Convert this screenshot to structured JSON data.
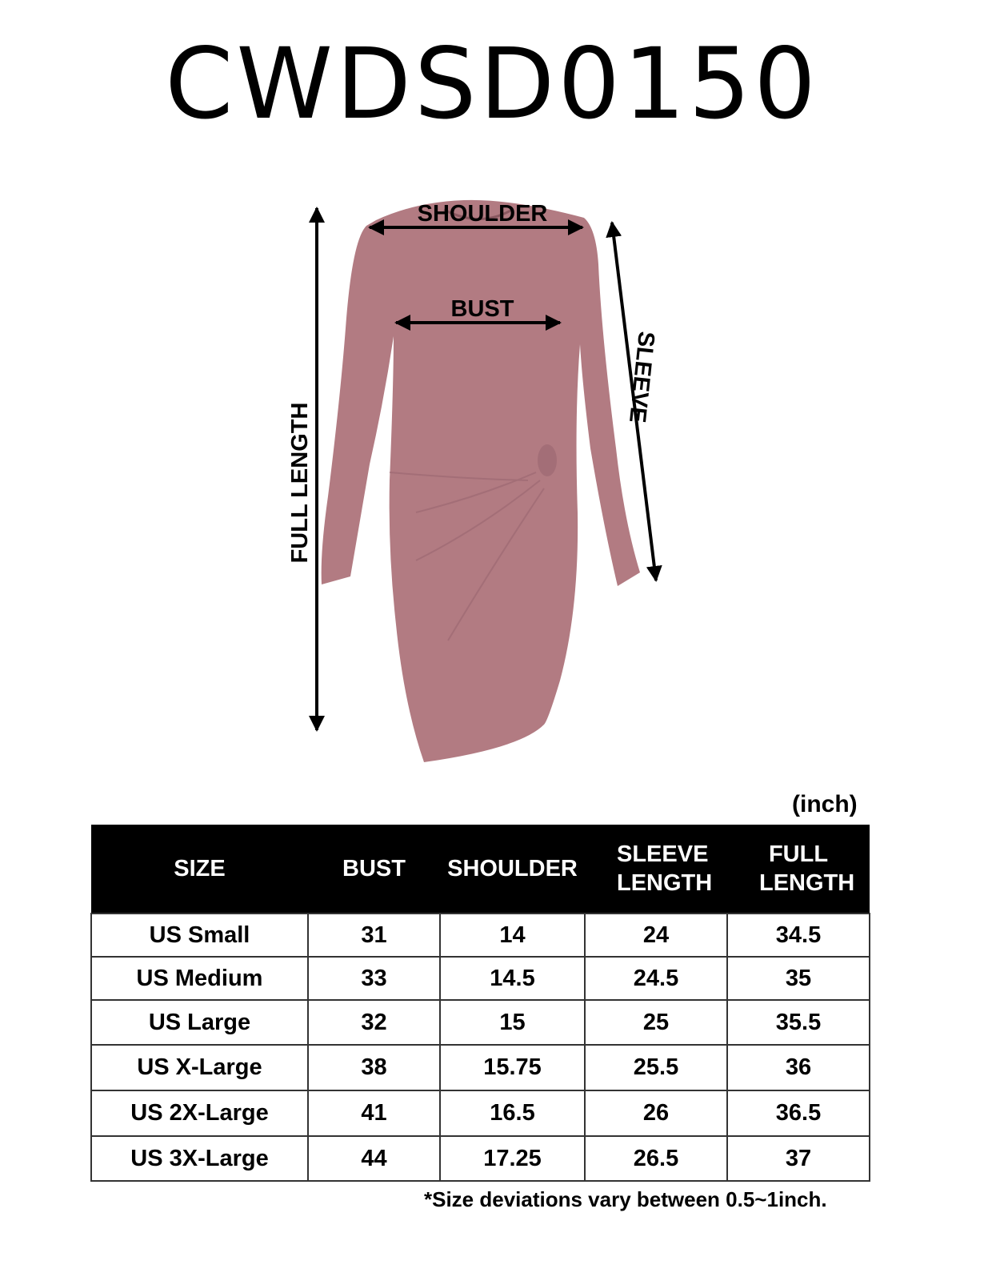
{
  "title": "CWDSD0150",
  "figure": {
    "labels": {
      "shoulder": "SHOULDER",
      "bust": "BUST",
      "sleeve": "SLEEVE",
      "full_length": "FULL LENGTH"
    },
    "dress_color": "#b27b82"
  },
  "unit": "(inch)",
  "table": {
    "headers": [
      "SIZE",
      "BUST",
      "SHOULDER",
      "SLEEVE LENGTH",
      "FULL LENGTH"
    ],
    "rows": [
      [
        "US Small",
        "31",
        "14",
        "24",
        "34.5"
      ],
      [
        "US Medium",
        "33",
        "14.5",
        "24.5",
        "35"
      ],
      [
        "US Large",
        "32",
        "15",
        "25",
        "35.5"
      ],
      [
        "US X-Large",
        "38",
        "15.75",
        "25.5",
        "36"
      ],
      [
        "US 2X-Large",
        "41",
        "16.5",
        "26",
        "36.5"
      ],
      [
        "US 3X-Large",
        "44",
        "17.25",
        "26.5",
        "37"
      ]
    ]
  },
  "note": "*Size deviations vary between 0.5~1inch."
}
